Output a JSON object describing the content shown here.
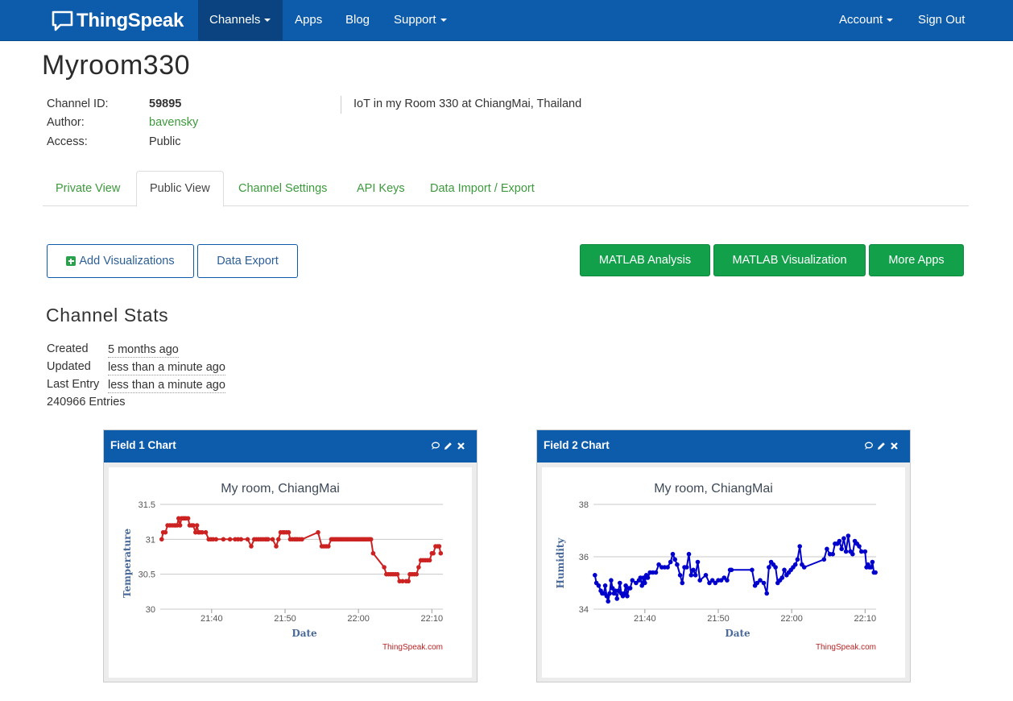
{
  "nav": {
    "brand": "ThingSpeak",
    "items": [
      {
        "label": "Channels",
        "dropdown": true,
        "active": true
      },
      {
        "label": "Apps",
        "dropdown": false
      },
      {
        "label": "Blog",
        "dropdown": false
      },
      {
        "label": "Support",
        "dropdown": true
      }
    ],
    "account": "Account",
    "sign_out": "Sign Out"
  },
  "channel": {
    "title": "Myroom330",
    "id_label": "Channel ID:",
    "id_value": "59895",
    "author_label": "Author:",
    "author_value": "bavensky",
    "access_label": "Access:",
    "access_value": "Public",
    "description": "IoT in my Room 330 at ChiangMai, Thailand"
  },
  "tabs": [
    "Private View",
    "Public View",
    "Channel Settings",
    "API Keys",
    "Data Import / Export"
  ],
  "active_tab": "Public View",
  "buttons": {
    "add_visualizations": "Add Visualizations",
    "data_export": "Data Export",
    "matlab_analysis": "MATLAB Analysis",
    "matlab_visualization": "MATLAB Visualization",
    "more_apps": "More Apps"
  },
  "stats": {
    "title": "Channel Stats",
    "created_label": "Created",
    "created_value": "5 months ago",
    "updated_label": "Updated",
    "updated_value": "less than a minute ago",
    "last_entry_label": "Last Entry",
    "last_entry_value": "less than a minute ago",
    "entries": "240966 Entries"
  },
  "colors": {
    "navbar": "#0d5bab",
    "link_green": "#3c9a3c",
    "button_green": "#12a04a",
    "series_field1": "#cc2222",
    "series_field2": "#0000cc"
  },
  "icons": [
    "comment-icon",
    "pencil-icon",
    "close-icon",
    "plus-icon",
    "chevron-down-icon"
  ],
  "widgets": [
    {
      "title": "Field 1 Chart"
    },
    {
      "title": "Field 2 Chart"
    }
  ],
  "chart_data": [
    {
      "type": "line",
      "title": "My room, ChiangMai",
      "xlabel": "Date",
      "ylabel": "Temperature",
      "credit": "ThingSpeak.com",
      "x_unit": "minutes after 21:00",
      "x_ticks": [
        40,
        50,
        60,
        70
      ],
      "x_tick_labels": [
        "21:40",
        "21:50",
        "22:00",
        "22:10"
      ],
      "xlim": [
        33,
        71.5
      ],
      "ylim": [
        30,
        31.5
      ],
      "y_ticks": [
        30,
        30.5,
        31,
        31.5
      ],
      "y_tick_labels": [
        "30",
        "30.5",
        "31",
        "31.5"
      ],
      "grid": true,
      "color": "#cc2222",
      "points": [
        [
          33.2,
          31.0
        ],
        [
          33.4,
          31.1
        ],
        [
          33.7,
          31.1
        ],
        [
          34.0,
          31.2
        ],
        [
          34.3,
          31.2
        ],
        [
          34.6,
          31.2
        ],
        [
          34.9,
          31.2
        ],
        [
          35.1,
          31.2
        ],
        [
          35.3,
          31.2
        ],
        [
          35.5,
          31.3
        ],
        [
          35.7,
          31.2
        ],
        [
          35.9,
          31.3
        ],
        [
          36.1,
          31.3
        ],
        [
          36.3,
          31.3
        ],
        [
          36.5,
          31.3
        ],
        [
          36.8,
          31.3
        ],
        [
          37.0,
          31.2
        ],
        [
          37.3,
          31.2
        ],
        [
          37.5,
          31.2
        ],
        [
          37.8,
          31.1
        ],
        [
          38.0,
          31.2
        ],
        [
          38.2,
          31.1
        ],
        [
          38.4,
          31.1
        ],
        [
          38.7,
          31.1
        ],
        [
          39.2,
          31.1
        ],
        [
          39.6,
          31.0
        ],
        [
          39.9,
          31.0
        ],
        [
          40.2,
          31.0
        ],
        [
          40.6,
          31.0
        ],
        [
          41.6,
          31.0
        ],
        [
          42.5,
          31.0
        ],
        [
          43.2,
          31.0
        ],
        [
          43.6,
          31.0
        ],
        [
          44.0,
          31.0
        ],
        [
          44.9,
          31.0
        ],
        [
          45.4,
          30.9
        ],
        [
          45.8,
          31.0
        ],
        [
          46.1,
          31.0
        ],
        [
          46.4,
          31.0
        ],
        [
          46.7,
          31.0
        ],
        [
          47.0,
          31.0
        ],
        [
          47.3,
          31.0
        ],
        [
          47.5,
          31.0
        ],
        [
          47.7,
          31.0
        ],
        [
          48.3,
          31.0
        ],
        [
          48.8,
          30.9
        ],
        [
          49.1,
          31.0
        ],
        [
          49.4,
          31.1
        ],
        [
          49.7,
          31.1
        ],
        [
          49.9,
          31.1
        ],
        [
          50.2,
          31.1
        ],
        [
          50.5,
          31.1
        ],
        [
          50.7,
          31.0
        ],
        [
          51.0,
          31.0
        ],
        [
          51.3,
          31.0
        ],
        [
          51.5,
          31.0
        ],
        [
          51.7,
          31.0
        ],
        [
          52.0,
          31.0
        ],
        [
          52.3,
          31.0
        ],
        [
          54.5,
          31.1
        ],
        [
          55.0,
          30.9
        ],
        [
          55.3,
          30.9
        ],
        [
          55.6,
          30.9
        ],
        [
          55.9,
          30.9
        ],
        [
          56.3,
          31.0
        ],
        [
          56.5,
          31.0
        ],
        [
          56.7,
          31.0
        ],
        [
          56.9,
          31.0
        ],
        [
          57.1,
          31.0
        ],
        [
          57.3,
          31.0
        ],
        [
          57.5,
          31.0
        ],
        [
          57.7,
          31.0
        ],
        [
          57.9,
          31.0
        ],
        [
          58.1,
          31.0
        ],
        [
          58.3,
          31.0
        ],
        [
          58.5,
          31.0
        ],
        [
          58.7,
          31.0
        ],
        [
          58.9,
          31.0
        ],
        [
          59.1,
          31.0
        ],
        [
          59.3,
          31.0
        ],
        [
          59.5,
          31.0
        ],
        [
          59.7,
          31.0
        ],
        [
          59.9,
          31.0
        ],
        [
          60.1,
          31.0
        ],
        [
          60.3,
          31.0
        ],
        [
          60.5,
          31.0
        ],
        [
          60.7,
          31.0
        ],
        [
          60.9,
          31.0
        ],
        [
          61.1,
          31.0
        ],
        [
          61.3,
          31.0
        ],
        [
          61.5,
          31.0
        ],
        [
          61.7,
          31.0
        ],
        [
          62.0,
          30.8
        ],
        [
          63.5,
          30.6
        ],
        [
          63.8,
          30.5
        ],
        [
          64.1,
          30.5
        ],
        [
          64.4,
          30.5
        ],
        [
          64.7,
          30.5
        ],
        [
          65.0,
          30.5
        ],
        [
          65.3,
          30.5
        ],
        [
          65.6,
          30.4
        ],
        [
          66.0,
          30.4
        ],
        [
          66.5,
          30.4
        ],
        [
          66.8,
          30.4
        ],
        [
          67.0,
          30.5
        ],
        [
          67.3,
          30.5
        ],
        [
          67.6,
          30.5
        ],
        [
          67.9,
          30.5
        ],
        [
          68.2,
          30.6
        ],
        [
          68.5,
          30.7
        ],
        [
          68.8,
          30.7
        ],
        [
          69.1,
          30.7
        ],
        [
          69.4,
          30.7
        ],
        [
          69.7,
          30.7
        ],
        [
          70.0,
          30.8
        ],
        [
          70.2,
          30.8
        ],
        [
          70.5,
          30.9
        ],
        [
          70.8,
          30.9
        ],
        [
          71.0,
          30.9
        ],
        [
          71.2,
          30.8
        ]
      ]
    },
    {
      "type": "line",
      "title": "My room, ChiangMai",
      "xlabel": "Date",
      "ylabel": "Humidity",
      "credit": "ThingSpeak.com",
      "x_unit": "minutes after 21:00",
      "x_ticks": [
        40,
        50,
        60,
        70
      ],
      "x_tick_labels": [
        "21:40",
        "21:50",
        "22:00",
        "22:10"
      ],
      "xlim": [
        33,
        71.5
      ],
      "ylim": [
        34,
        38
      ],
      "y_ticks": [
        34,
        36,
        38
      ],
      "y_tick_labels": [
        "34",
        "36",
        "38"
      ],
      "grid": true,
      "color": "#0000cc",
      "points": [
        [
          33.2,
          35.3
        ],
        [
          33.4,
          35.0
        ],
        [
          33.7,
          34.9
        ],
        [
          34.0,
          34.7
        ],
        [
          34.2,
          34.6
        ],
        [
          34.4,
          34.6
        ],
        [
          34.6,
          34.9
        ],
        [
          34.8,
          34.5
        ],
        [
          35.0,
          34.3
        ],
        [
          35.2,
          34.6
        ],
        [
          35.4,
          35.1
        ],
        [
          35.6,
          34.8
        ],
        [
          35.8,
          34.6
        ],
        [
          36.0,
          34.7
        ],
        [
          36.2,
          34.4
        ],
        [
          36.4,
          34.7
        ],
        [
          36.6,
          35.0
        ],
        [
          36.8,
          34.6
        ],
        [
          37.0,
          34.5
        ],
        [
          37.2,
          34.6
        ],
        [
          37.4,
          34.9
        ],
        [
          37.6,
          34.5
        ],
        [
          37.8,
          34.8
        ],
        [
          38.0,
          34.8
        ],
        [
          38.3,
          35.1
        ],
        [
          38.8,
          35.0
        ],
        [
          39.2,
          35.1
        ],
        [
          39.4,
          35.2
        ],
        [
          39.6,
          34.9
        ],
        [
          39.8,
          35.2
        ],
        [
          40.0,
          35.0
        ],
        [
          40.2,
          35.3
        ],
        [
          40.4,
          35.2
        ],
        [
          40.7,
          35.4
        ],
        [
          41.1,
          35.4
        ],
        [
          41.5,
          35.4
        ],
        [
          41.9,
          35.7
        ],
        [
          42.3,
          35.6
        ],
        [
          42.7,
          35.6
        ],
        [
          43.1,
          35.6
        ],
        [
          43.5,
          35.8
        ],
        [
          43.8,
          36.1
        ],
        [
          44.1,
          35.9
        ],
        [
          44.4,
          35.7
        ],
        [
          44.8,
          35.3
        ],
        [
          45.1,
          35.0
        ],
        [
          45.4,
          35.6
        ],
        [
          45.7,
          35.6
        ],
        [
          46.0,
          36.1
        ],
        [
          46.3,
          35.3
        ],
        [
          46.6,
          35.5
        ],
        [
          46.9,
          35.3
        ],
        [
          47.2,
          35.8
        ],
        [
          47.5,
          35.1
        ],
        [
          48.3,
          35.3
        ],
        [
          48.8,
          35.0
        ],
        [
          49.2,
          35.1
        ],
        [
          49.6,
          35.0
        ],
        [
          50.0,
          35.1
        ],
        [
          50.4,
          35.1
        ],
        [
          50.8,
          35.2
        ],
        [
          51.2,
          35.1
        ],
        [
          51.6,
          35.5
        ],
        [
          51.8,
          35.5
        ],
        [
          54.6,
          35.5
        ],
        [
          55.0,
          34.9
        ],
        [
          55.3,
          35.0
        ],
        [
          55.7,
          35.1
        ],
        [
          56.2,
          35.0
        ],
        [
          56.6,
          34.6
        ],
        [
          56.9,
          35.6
        ],
        [
          57.2,
          35.8
        ],
        [
          57.5,
          35.7
        ],
        [
          57.8,
          35.6
        ],
        [
          58.1,
          35.0
        ],
        [
          58.4,
          35.1
        ],
        [
          58.7,
          35.2
        ],
        [
          59.0,
          35.5
        ],
        [
          59.3,
          35.3
        ],
        [
          59.6,
          35.4
        ],
        [
          59.9,
          35.5
        ],
        [
          60.2,
          35.6
        ],
        [
          60.5,
          35.7
        ],
        [
          60.8,
          35.9
        ],
        [
          61.1,
          36.4
        ],
        [
          61.4,
          35.7
        ],
        [
          61.7,
          35.6
        ],
        [
          64.4,
          35.9
        ],
        [
          64.8,
          36.3
        ],
        [
          65.2,
          36.1
        ],
        [
          65.6,
          36.1
        ],
        [
          65.9,
          36.5
        ],
        [
          66.2,
          36.5
        ],
        [
          66.5,
          36.6
        ],
        [
          66.8,
          36.3
        ],
        [
          67.1,
          36.7
        ],
        [
          67.4,
          36.2
        ],
        [
          67.7,
          36.8
        ],
        [
          68.0,
          36.2
        ],
        [
          68.3,
          36.1
        ],
        [
          68.6,
          36.6
        ],
        [
          68.9,
          36.5
        ],
        [
          69.2,
          36.4
        ],
        [
          69.5,
          36.2
        ],
        [
          70.0,
          36.2
        ],
        [
          70.2,
          35.6
        ],
        [
          70.4,
          35.7
        ],
        [
          70.6,
          35.6
        ],
        [
          70.8,
          35.6
        ],
        [
          71.0,
          35.8
        ],
        [
          71.2,
          35.4
        ],
        [
          71.4,
          35.4
        ]
      ]
    }
  ]
}
